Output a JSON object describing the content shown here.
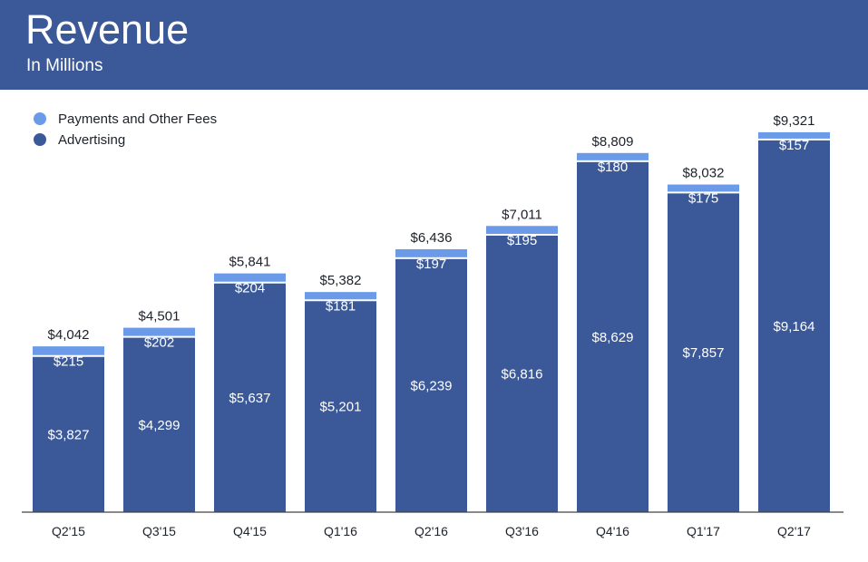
{
  "header": {
    "title": "Revenue",
    "subtitle": "In Millions"
  },
  "colors": {
    "header_bg": "#3b5998",
    "advertising": "#3b5998",
    "payments": "#6a9ae8"
  },
  "chart_data": {
    "type": "bar",
    "stacked": true,
    "categories": [
      "Q2'15",
      "Q3'15",
      "Q4'15",
      "Q1'16",
      "Q2'16",
      "Q3'16",
      "Q4'16",
      "Q1'17",
      "Q2'17"
    ],
    "series": [
      {
        "name": "Advertising",
        "values": [
          3827,
          4299,
          5637,
          5201,
          6239,
          6816,
          8629,
          7857,
          9164
        ],
        "labels": [
          "$3,827",
          "$4,299",
          "$5,637",
          "$5,201",
          "$6,239",
          "$6,816",
          "$8,629",
          "$7,857",
          "$9,164"
        ]
      },
      {
        "name": "Payments and Other Fees",
        "values": [
          215,
          202,
          204,
          181,
          197,
          195,
          180,
          175,
          157
        ],
        "labels": [
          "$215",
          "$202",
          "$204",
          "$181",
          "$197",
          "$195",
          "$180",
          "$175",
          "$157"
        ]
      }
    ],
    "totals": [
      4042,
      4501,
      5841,
      5382,
      6436,
      7011,
      8809,
      8032,
      9321
    ],
    "total_labels": [
      "$4,042",
      "$4,501",
      "$5,841",
      "$5,382",
      "$6,436",
      "$7,011",
      "$8,809",
      "$8,032",
      "$9,321"
    ],
    "legend_order": [
      "Payments and Other Fees",
      "Advertising"
    ],
    "legend_position": "top-left",
    "ylim": [
      0,
      10000
    ],
    "grid": false
  }
}
